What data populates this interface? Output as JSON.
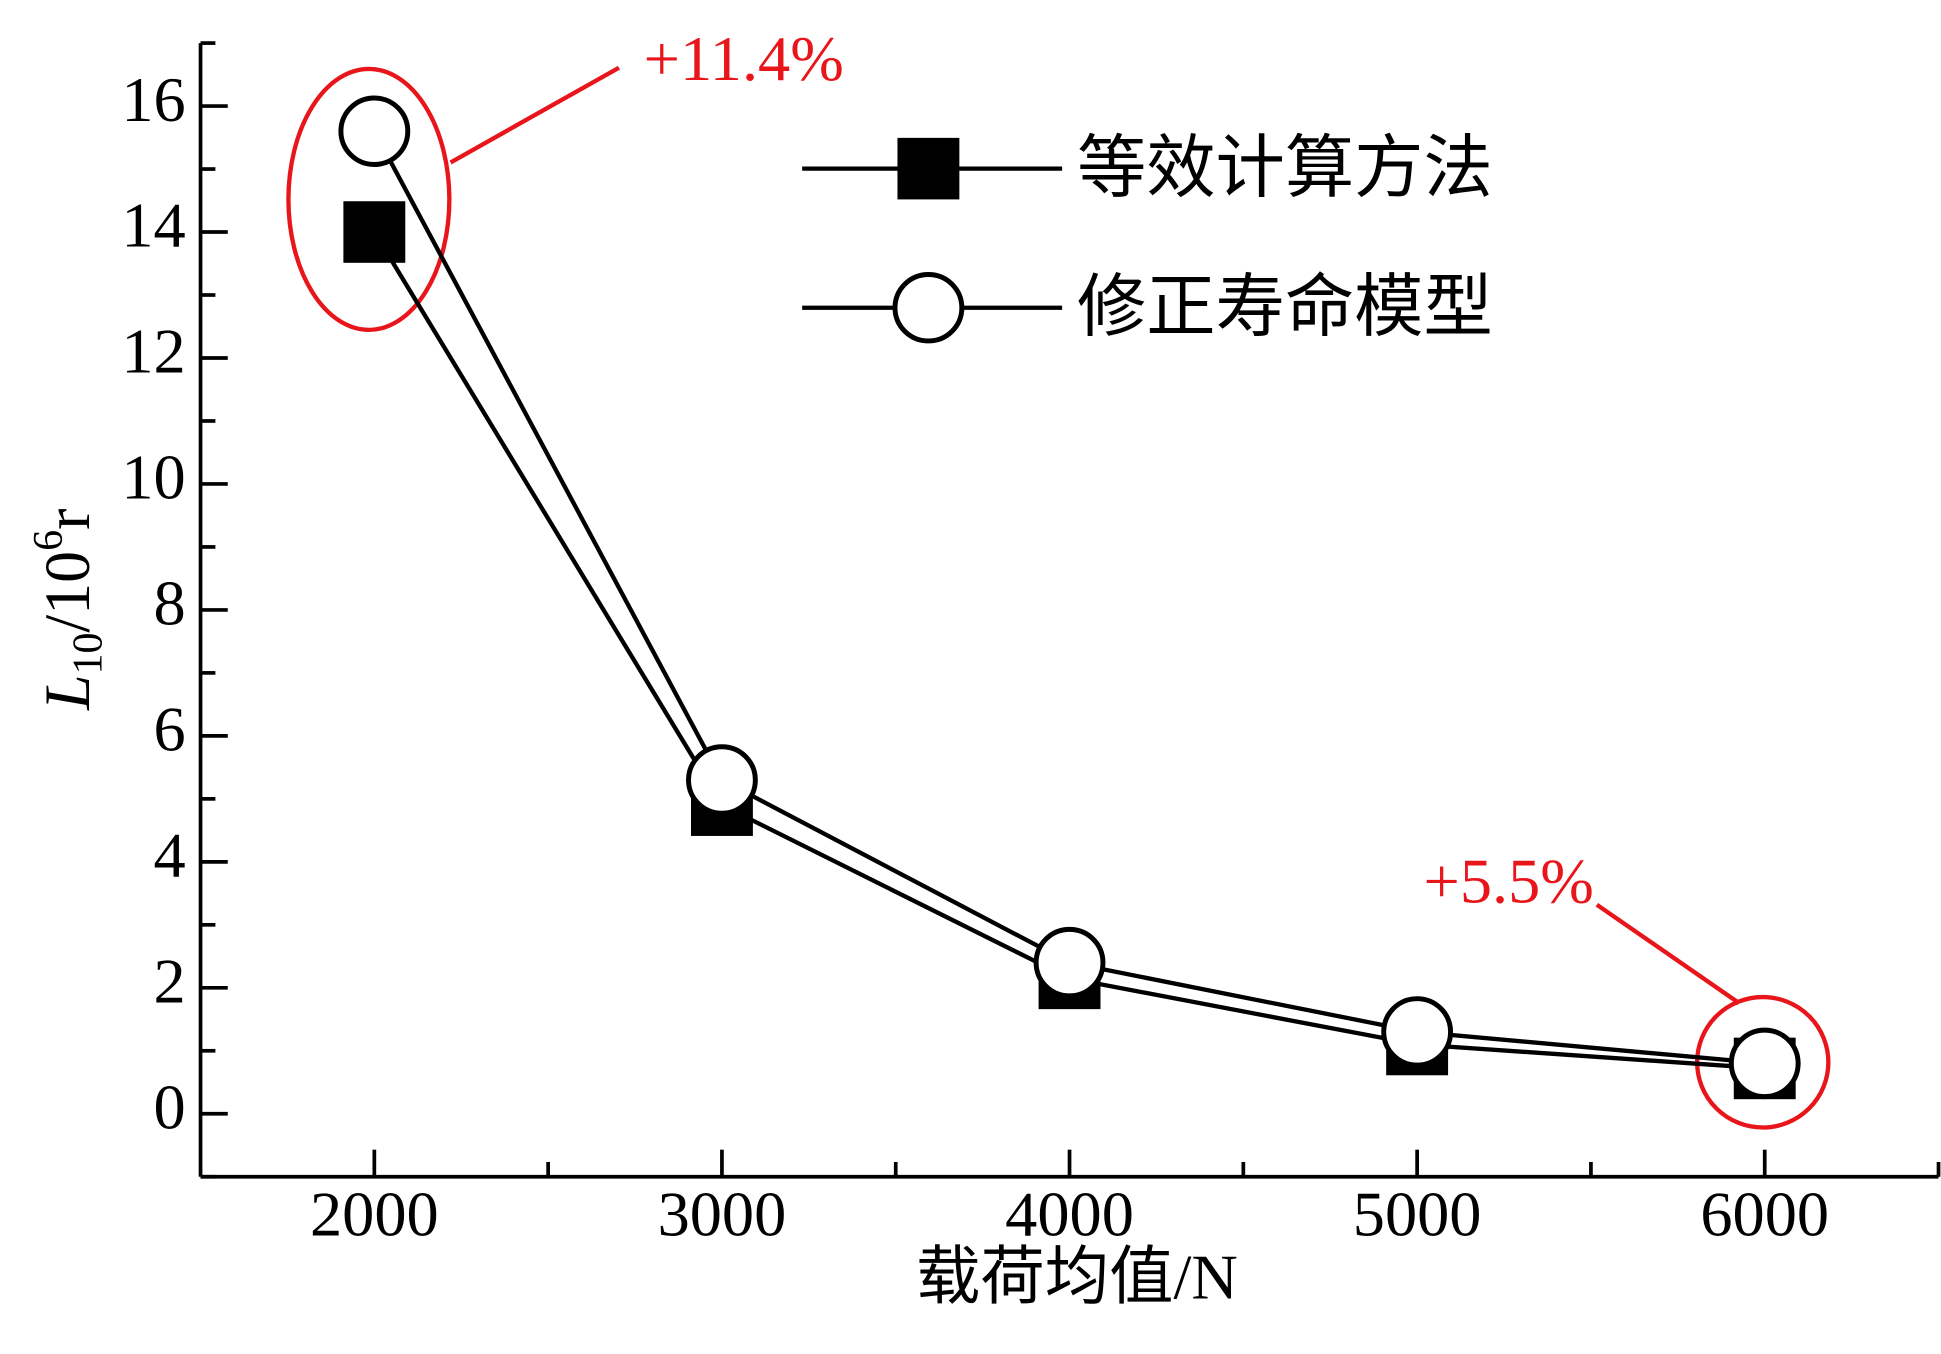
{
  "chart_data": {
    "type": "line",
    "x_label": "载荷均值/N",
    "y_label": {
      "symbol": "L",
      "subscript": "10",
      "unit": "/10",
      "superscript": "6",
      "suffix": "r"
    },
    "x": [
      2000,
      3000,
      4000,
      5000,
      6000
    ],
    "series": [
      {
        "name": "等效计算方法",
        "color": "#000000",
        "marker": "square",
        "values": [
          14.0,
          4.9,
          2.15,
          1.1,
          0.72
        ]
      },
      {
        "name": "修正寿命模型",
        "color": "#000000",
        "marker": "circle",
        "values": [
          15.6,
          5.3,
          2.4,
          1.3,
          0.8
        ]
      }
    ],
    "xlim": [
      1500,
      6500
    ],
    "xticks": [
      2000,
      3000,
      4000,
      5000,
      6000
    ],
    "xticks_minor": [
      2500,
      3500,
      4500,
      5500,
      6500
    ],
    "ylim": [
      -1,
      17
    ],
    "yticks": [
      0,
      2,
      4,
      6,
      8,
      10,
      12,
      14,
      16
    ],
    "yticks_minor": [
      -1,
      1,
      3,
      5,
      7,
      9,
      11,
      13,
      15,
      17
    ],
    "grid": false,
    "legend": "upper right",
    "annotations": [
      {
        "text": "+11.4%",
        "color": "#e8161b"
      },
      {
        "text": "+5.5%",
        "color": "#e8161b"
      }
    ]
  }
}
